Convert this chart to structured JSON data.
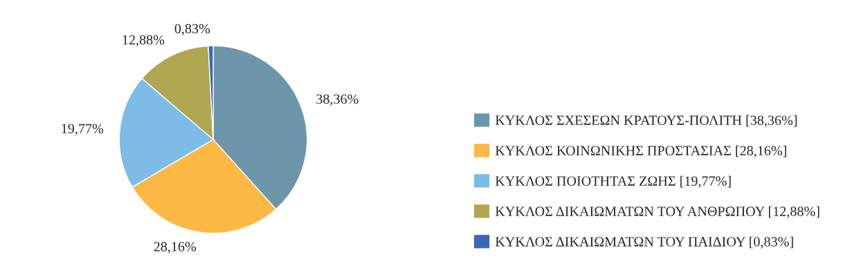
{
  "chart_data": {
    "type": "pie",
    "categories": [
      "ΚΥΚΛΟΣ ΣΧΕΣΕΩΝ ΚΡΑΤΟΥΣ-ΠΟΛΙΤΗ [38,36%]",
      "ΚΥΚΛΟΣ ΚΟΙΝΩΝΙΚΗΣ ΠΡΟΣΤΑΣΙΑΣ [28,16%]",
      "ΚΥΚΛΟΣ ΠΟΙΟΤΗΤΑΣ ΖΩΗΣ [19,77%]",
      "ΚΥΚΛΟΣ ΔΙΚΑΙΩΜΑΤΩΝ ΤΟΥ ΑΝΘΡΩΠΟΥ [12,88%]",
      "ΚΥΚΛΟΣ ΔΙΚΑΙΩΜΑΤΩΝ ΤΟΥ ΠΑΙΔΙΟΥ [0,83%]"
    ],
    "values": [
      38.36,
      28.16,
      19.77,
      12.88,
      0.83
    ],
    "value_labels": [
      "38,36%",
      "28,16%",
      "19,77%",
      "12,88%",
      "0,83%"
    ],
    "colors": [
      "#6d96ab",
      "#fbb844",
      "#7dbce7",
      "#afa752",
      "#3869b6"
    ],
    "legend": "right"
  }
}
